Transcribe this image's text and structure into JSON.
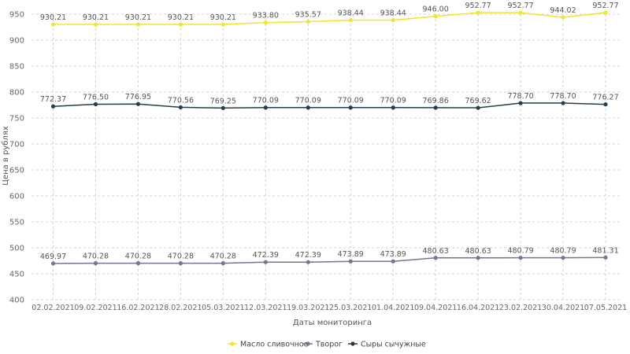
{
  "chart_data": {
    "type": "line",
    "title": "",
    "xlabel": "Даты мониторинга",
    "ylabel": "Цена в рублях",
    "ylim": [
      400,
      950
    ],
    "yticks": [
      400,
      450,
      500,
      550,
      600,
      650,
      700,
      750,
      800,
      850,
      900,
      950
    ],
    "grid": true,
    "legend_position": "bottom",
    "categories": [
      "02.02.2021",
      "09.02.2021",
      "16.02.2021",
      "28.02.2021",
      "05.03.2021",
      "12.03.2021",
      "19.03.2021",
      "25.03.2021",
      "01.04.2021",
      "09.04.2021",
      "16.04.2021",
      "23.02.2021",
      "30.04.2021",
      "07.05.2021"
    ],
    "series": [
      {
        "name": "Масло сливочное",
        "color": "#f2e52a",
        "values": [
          930.21,
          930.21,
          930.21,
          930.21,
          930.21,
          933.8,
          935.57,
          938.44,
          938.44,
          946.0,
          952.77,
          952.77,
          944.02,
          952.77
        ],
        "labels": [
          "930.21",
          "930.21",
          "930.21",
          "930.21",
          "930.21",
          "933.80",
          "935.57",
          "938.44",
          "938.44",
          "946.00",
          "952.77",
          "952.77",
          "944.02",
          "952.77"
        ]
      },
      {
        "name": "Творог",
        "color": "#7a7290",
        "values": [
          469.97,
          470.28,
          470.28,
          470.28,
          470.28,
          472.39,
          472.39,
          473.89,
          473.89,
          480.63,
          480.63,
          480.79,
          480.79,
          481.31
        ],
        "labels": [
          "469.97",
          "470.28",
          "470.28",
          "470.28",
          "470.28",
          "472.39",
          "472.39",
          "473.89",
          "473.89",
          "480.63",
          "480.63",
          "480.79",
          "480.79",
          "481.31"
        ]
      },
      {
        "name": "Сыры сычужные",
        "color": "#253d47",
        "values": [
          772.37,
          776.5,
          776.95,
          770.56,
          769.25,
          770.09,
          770.09,
          770.09,
          770.09,
          769.86,
          769.62,
          778.7,
          778.7,
          776.27
        ],
        "labels": [
          "772.37",
          "776.50",
          "776.95",
          "770.56",
          "769.25",
          "770.09",
          "770.09",
          "770.09",
          "770.09",
          "769.86",
          "769.62",
          "778.70",
          "778.70",
          "776.27"
        ]
      }
    ]
  }
}
